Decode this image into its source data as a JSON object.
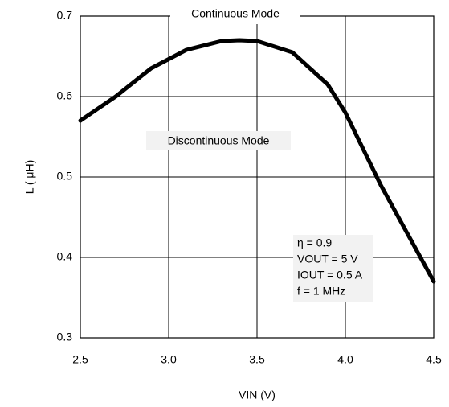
{
  "chart_data": {
    "type": "line",
    "xlabel": "VIN (V)",
    "ylabel": "L ( μH)",
    "annotations": [
      "Continuous Mode",
      "Discontinuous Mode",
      "η = 0.9",
      "VOUT = 5 V",
      "IOUT = 0.5 A",
      "f = 1 MHz"
    ],
    "x": [
      2.5,
      2.7,
      2.9,
      3.1,
      3.3,
      3.4,
      3.5,
      3.7,
      3.9,
      4.0,
      4.1,
      4.2,
      4.3,
      4.4,
      4.5
    ],
    "values": [
      0.57,
      0.6,
      0.635,
      0.658,
      0.669,
      0.67,
      0.669,
      0.655,
      0.615,
      0.58,
      0.535,
      0.49,
      0.45,
      0.41,
      0.37
    ],
    "color": "#000000",
    "xlim": [
      2.5,
      4.5
    ],
    "xticks": [
      2.5,
      {
        "value": 3,
        "label": "3.0"
      },
      3.5,
      {
        "value": 4,
        "label": "4.0"
      },
      4.5
    ],
    "ylim": [
      0.3,
      0.7
    ],
    "yticks": [
      0.3,
      0.4,
      0.5,
      0.6,
      0.7
    ],
    "grid": true
  }
}
